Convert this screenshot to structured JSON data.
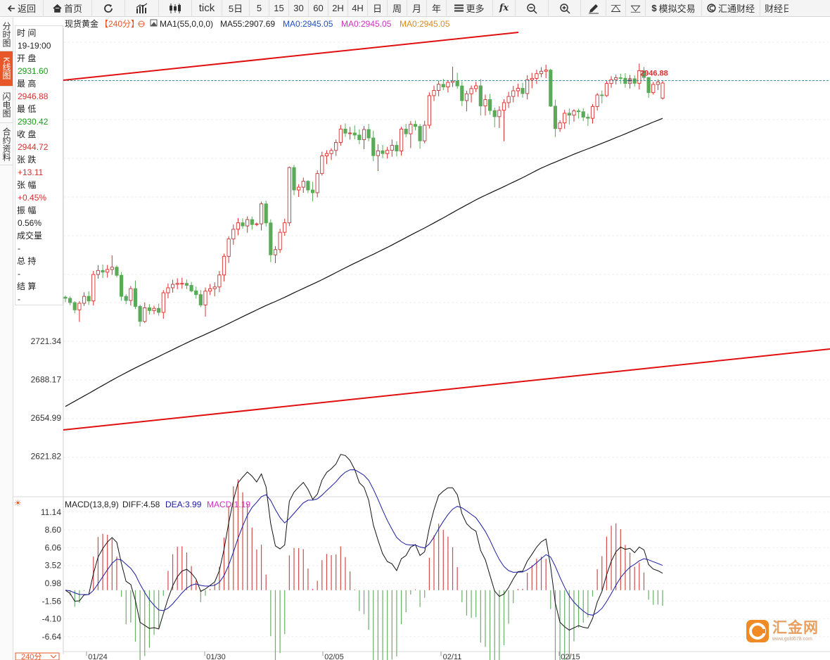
{
  "toolbar": {
    "back": "返回",
    "home": "首页",
    "tick": "tick",
    "periods": [
      "5日",
      "5",
      "15",
      "30",
      "60",
      "2H",
      "4H",
      "日",
      "周",
      "月",
      "年"
    ],
    "more": "更多",
    "fx": "fx",
    "simulate": "模拟交易",
    "huitong": "汇通财经",
    "caijing": "财经日"
  },
  "side_tabs": [
    "分时图",
    "K线图",
    "闪电图",
    "合约资料"
  ],
  "legend": {
    "symbol": "现货黄金",
    "period": "【240分】",
    "ma1": "MA1(55,0,0,0)",
    "ma55": "MA55:2907.69",
    "ma0a": "MA0:2945.05",
    "ma0b": "MA0:2945.05",
    "ma0c": "MA0:2945.05"
  },
  "info": {
    "rows": [
      {
        "label": "时 间",
        "value": "19-19:00",
        "color": "#222222"
      },
      {
        "label": "开 盘",
        "value": "2931.60",
        "color": "#1a9a1a"
      },
      {
        "label": "最 高",
        "value": "2946.88",
        "color": "#d43030"
      },
      {
        "label": "最 低",
        "value": "2930.42",
        "color": "#1a9a1a"
      },
      {
        "label": "收 盘",
        "value": "2944.72",
        "color": "#d43030"
      },
      {
        "label": "张 跌",
        "value": "+13.11",
        "color": "#d43030"
      },
      {
        "label": "张 幅",
        "value": "+0.45%",
        "color": "#d43030"
      },
      {
        "label": "振 幅",
        "value": "0.56%",
        "color": "#222222"
      },
      {
        "label": "成交量",
        "value": "-",
        "color": "#222222"
      },
      {
        "label": "总 持",
        "value": "-",
        "color": "#222222"
      },
      {
        "label": "结 算",
        "value": "-",
        "color": "#222222"
      }
    ]
  },
  "macd_legend": {
    "name": "MACD(13,8,9)",
    "diff": "DIFF:4.58",
    "dea": "DEA:3.99",
    "macd": "MACD:1.19"
  },
  "period_badge": "240分",
  "logo": {
    "name": "汇金网",
    "url": "www.gold678.com"
  },
  "colors": {
    "up": "#d43030",
    "down": "#5aaa5a",
    "ma": "#111111",
    "trend": "#e01010",
    "dea": "#1a1aa0",
    "accent": "#e8572a"
  },
  "chart_data": [
    {
      "type": "candlestick",
      "title": "现货黄金 240分",
      "y_ticks": [
        2621.82,
        2654.99,
        2688.17,
        2721.34
      ],
      "y_range": [
        2600,
        2960
      ],
      "x_ticks": [
        "01/24",
        "01/30",
        "02/05",
        "02/11",
        "02/15"
      ],
      "high_marker": "2946.88",
      "ohlc": [
        [
          2759.5,
          2761,
          2755.2,
          2758.5
        ],
        [
          2758.5,
          2760.2,
          2752.5,
          2754.8
        ],
        [
          2754.8,
          2756,
          2745.5,
          2748.5
        ],
        [
          2748.5,
          2756,
          2738.1,
          2754.2
        ],
        [
          2754.2,
          2763.7,
          2751.9,
          2760.2
        ],
        [
          2760.2,
          2764.6,
          2752.8,
          2756.2
        ],
        [
          2756.2,
          2782.2,
          2752.3,
          2779.1
        ],
        [
          2779.1,
          2787.2,
          2775.5,
          2782.6
        ],
        [
          2782.6,
          2787.7,
          2776.1,
          2781.1
        ],
        [
          2781.1,
          2787.3,
          2776.4,
          2783.4
        ],
        [
          2783.4,
          2795.6,
          2778.8,
          2785.4
        ],
        [
          2785.4,
          2786.9,
          2776.6,
          2778.4
        ],
        [
          2778.4,
          2781.2,
          2756.3,
          2760.2
        ],
        [
          2760.2,
          2762.1,
          2753.4,
          2756.6
        ],
        [
          2756.6,
          2769.1,
          2752.2,
          2766.9
        ],
        [
          2766.9,
          2773.9,
          2749.2,
          2751.5
        ],
        [
          2751.5,
          2753,
          2734.1,
          2738.5
        ],
        [
          2738.5,
          2754.9,
          2737.1,
          2750.3
        ],
        [
          2750.3,
          2753.5,
          2744.4,
          2747.9
        ],
        [
          2747.9,
          2752.1,
          2744.7,
          2749.8
        ],
        [
          2749.8,
          2753.9,
          2743.5,
          2746.3
        ],
        [
          2746.3,
          2765.6,
          2740.8,
          2763.3
        ],
        [
          2763.3,
          2771.3,
          2758.5,
          2767.6
        ],
        [
          2767.6,
          2774.6,
          2763.4,
          2770.6
        ],
        [
          2770.6,
          2775.9,
          2766.4,
          2771.4
        ],
        [
          2771.4,
          2776.3,
          2766.8,
          2771.4
        ],
        [
          2771.4,
          2774.8,
          2766.4,
          2769.7
        ],
        [
          2769.7,
          2772.7,
          2763.7,
          2764.9
        ],
        [
          2764.9,
          2768.6,
          2758.2,
          2761.7
        ],
        [
          2761.7,
          2765.6,
          2750.8,
          2752.7
        ],
        [
          2752.7,
          2767.8,
          2742.6,
          2764.7
        ],
        [
          2764.7,
          2770.9,
          2761.3,
          2766.8
        ],
        [
          2766.8,
          2772.3,
          2760.3,
          2768.3
        ],
        [
          2768.3,
          2782.1,
          2763.8,
          2778.7
        ],
        [
          2778.7,
          2797.1,
          2773.2,
          2794.8
        ],
        [
          2794.8,
          2812.1,
          2789.1,
          2809.8
        ],
        [
          2809.8,
          2822.3,
          2804.8,
          2818.2
        ],
        [
          2818.2,
          2827.9,
          2813.1,
          2823.8
        ],
        [
          2823.8,
          2827.7,
          2818.6,
          2821.1
        ],
        [
          2821.1,
          2829.4,
          2815.2,
          2826.6
        ],
        [
          2826.6,
          2829.2,
          2818,
          2822.3
        ],
        [
          2822.3,
          2824.1,
          2820.9,
          2822.9
        ],
        [
          2822.9,
          2842.1,
          2817.2,
          2840.2
        ],
        [
          2840.2,
          2842.9,
          2820.4,
          2823.7
        ],
        [
          2823.7,
          2826.8,
          2789.7,
          2796.1
        ],
        [
          2796.1,
          2803.6,
          2788.9,
          2800.6
        ],
        [
          2800.6,
          2818.6,
          2797.8,
          2815.6
        ],
        [
          2815.6,
          2827.4,
          2812.6,
          2823.8
        ],
        [
          2823.8,
          2872.5,
          2820.9,
          2871.6
        ],
        [
          2871.6,
          2873.9,
          2847.8,
          2852.2
        ],
        [
          2852.2,
          2857.2,
          2846.1,
          2854.6
        ],
        [
          2854.6,
          2862.9,
          2849.7,
          2859.7
        ],
        [
          2859.7,
          2860.6,
          2849.5,
          2852.2
        ],
        [
          2852.2,
          2859.3,
          2842.4,
          2849.8
        ],
        [
          2849.8,
          2869.1,
          2845.8,
          2866.4
        ],
        [
          2866.4,
          2885.3,
          2864.7,
          2881.7
        ],
        [
          2881.7,
          2886.6,
          2874.6,
          2883.7
        ],
        [
          2883.7,
          2888.3,
          2878.1,
          2886.4
        ],
        [
          2886.4,
          2895.9,
          2881.8,
          2893.3
        ],
        [
          2893.3,
          2908.4,
          2890.6,
          2904.9
        ],
        [
          2904.9,
          2909.8,
          2898.1,
          2901.3
        ],
        [
          2901.3,
          2906.7,
          2895.8,
          2901.5
        ],
        [
          2901.5,
          2908.1,
          2896.1,
          2899.7
        ],
        [
          2899.7,
          2904.7,
          2891.8,
          2895.7
        ],
        [
          2895.7,
          2907.5,
          2887.6,
          2904.5
        ],
        [
          2904.5,
          2909.3,
          2894.3,
          2897.2
        ],
        [
          2897.2,
          2903.4,
          2877.2,
          2881.9
        ],
        [
          2881.9,
          2891.7,
          2868.6,
          2886.1
        ],
        [
          2886.1,
          2891.2,
          2879.6,
          2883.7
        ],
        [
          2883.7,
          2889.5,
          2879.3,
          2886.5
        ],
        [
          2886.5,
          2895.9,
          2881,
          2890.8
        ],
        [
          2890.8,
          2894.3,
          2881.3,
          2885.9
        ],
        [
          2885.9,
          2906.9,
          2882,
          2904.9
        ],
        [
          2904.9,
          2909.3,
          2897.8,
          2900.8
        ],
        [
          2900.8,
          2911.8,
          2888.4,
          2909
        ],
        [
          2909,
          2912.2,
          2903.8,
          2907.2
        ],
        [
          2907.2,
          2909.3,
          2887.9,
          2894.7
        ],
        [
          2894.7,
          2912.1,
          2892.5,
          2908.2
        ],
        [
          2908.2,
          2936.6,
          2905.4,
          2933.8
        ],
        [
          2933.8,
          2942.5,
          2929.1,
          2938.3
        ],
        [
          2938.3,
          2946.8,
          2933.3,
          2943.6
        ],
        [
          2943.6,
          2948.4,
          2938.4,
          2941.3
        ],
        [
          2941.3,
          2946.9,
          2936.5,
          2945.3
        ],
        [
          2945.3,
          2958.8,
          2941.3,
          2946.4
        ],
        [
          2946.4,
          2953.6,
          2939.7,
          2942.2
        ],
        [
          2942.2,
          2946.1,
          2924.8,
          2929.5
        ],
        [
          2929.5,
          2938,
          2920.2,
          2935.4
        ],
        [
          2935.4,
          2942.5,
          2927.9,
          2939.9
        ],
        [
          2939.9,
          2945.8,
          2936.9,
          2942.3
        ],
        [
          2942.3,
          2948.1,
          2916.6,
          2924.9
        ],
        [
          2924.9,
          2934.7,
          2916.5,
          2930.4
        ],
        [
          2930.4,
          2935.4,
          2917.4,
          2920.9
        ],
        [
          2920.9,
          2923.5,
          2906.4,
          2915.6
        ],
        [
          2915.6,
          2924.6,
          2905.8,
          2921.1
        ],
        [
          2921.1,
          2930.7,
          2894.3,
          2927.7
        ],
        [
          2927.7,
          2937.1,
          2923.2,
          2933.1
        ],
        [
          2933.1,
          2942.2,
          2928,
          2938
        ],
        [
          2938,
          2944.2,
          2932.8,
          2940.1
        ],
        [
          2940.1,
          2944.9,
          2932,
          2935.6
        ],
        [
          2935.6,
          2951.4,
          2930.6,
          2947.5
        ],
        [
          2947.5,
          2953.5,
          2940.1,
          2948.7
        ],
        [
          2948.7,
          2956.2,
          2943.9,
          2952.8
        ],
        [
          2952.8,
          2958.4,
          2949.8,
          2954.9
        ],
        [
          2954.9,
          2960.5,
          2949,
          2955.9
        ],
        [
          2955.9,
          2957,
          2924,
          2924.7
        ],
        [
          2924.7,
          2930.3,
          2898,
          2905.3
        ],
        [
          2905.3,
          2912.5,
          2902.5,
          2910.2
        ],
        [
          2910.2,
          2921.4,
          2905.1,
          2918.6
        ],
        [
          2918.6,
          2922.7,
          2908.9,
          2916.9
        ],
        [
          2916.9,
          2922.1,
          2911.3,
          2920.6
        ],
        [
          2920.6,
          2922.6,
          2913.9,
          2919.9
        ],
        [
          2919.9,
          2922.9,
          2911.9,
          2915.2
        ],
        [
          2915.2,
          2918.2,
          2907.6,
          2914.2
        ],
        [
          2914.2,
          2926.5,
          2909.7,
          2924.4
        ],
        [
          2924.4,
          2936.1,
          2920.9,
          2934.4
        ],
        [
          2934.4,
          2938.2,
          2927.1,
          2933.8
        ],
        [
          2933.8,
          2946.8,
          2932.7,
          2944.3
        ],
        [
          2944.3,
          2950.6,
          2940.6,
          2947.6
        ],
        [
          2947.6,
          2951.9,
          2943.5,
          2949.3
        ],
        [
          2949.3,
          2952.8,
          2943.9,
          2948.8
        ],
        [
          2948.8,
          2953.2,
          2940.7,
          2944.3
        ],
        [
          2944.3,
          2951.7,
          2939.9,
          2948.4
        ],
        [
          2948.4,
          2951.4,
          2941.6,
          2944.5
        ],
        [
          2944.5,
          2961.6,
          2939.2,
          2955.3
        ],
        [
          2955.3,
          2958.7,
          2946.8,
          2949.5
        ],
        [
          2949.5,
          2949.8,
          2931.9,
          2936.4
        ],
        [
          2936.4,
          2945.8,
          2934.7,
          2943.5
        ],
        [
          2943.5,
          2947.9,
          2938.6,
          2945.6
        ],
        [
          2931.6,
          2946.88,
          2930.42,
          2944.72
        ]
      ],
      "ma_label": "MA55",
      "ma_last": 2907.69,
      "trendlines": "parallel red channel"
    },
    {
      "type": "bar+line",
      "title": "MACD(13,8,9)",
      "y_ticks": [
        11.14,
        8.6,
        6.06,
        3.52,
        0.98,
        -1.56,
        -4.1,
        -6.64
      ],
      "y_range": [
        -10.0,
        12.5
      ],
      "diff_last": 4.58,
      "dea_last": 3.99,
      "macd_last": 1.19
    }
  ]
}
